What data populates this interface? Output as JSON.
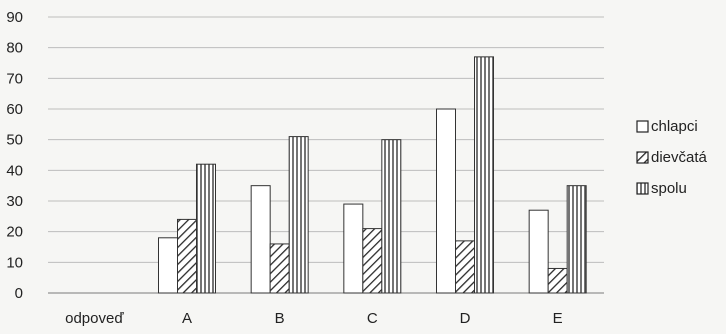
{
  "chart_data": {
    "type": "bar",
    "categories": [
      "odpoveď",
      "A",
      "B",
      "C",
      "D",
      "E"
    ],
    "series": [
      {
        "name": "chlapci",
        "values": [
          0,
          18,
          35,
          29,
          60,
          27
        ],
        "pattern": "empty"
      },
      {
        "name": "dievčatá",
        "values": [
          0,
          24,
          16,
          21,
          17,
          8
        ],
        "pattern": "diagonal"
      },
      {
        "name": "spolu",
        "values": [
          0,
          42,
          51,
          50,
          77,
          35
        ],
        "pattern": "vertical"
      }
    ],
    "title": "",
    "xlabel": "",
    "ylabel": "",
    "ylim": [
      0,
      90
    ],
    "yticks": [
      "0",
      "10",
      "20",
      "30",
      "40",
      "50",
      "60",
      "70",
      "80",
      "90"
    ],
    "grid": true,
    "legend": "right",
    "colors": {
      "bar_fill": "#ffffff",
      "bar_stroke": "#333333",
      "grid": "#bdbdbd",
      "background": "#f6f6f4"
    }
  }
}
